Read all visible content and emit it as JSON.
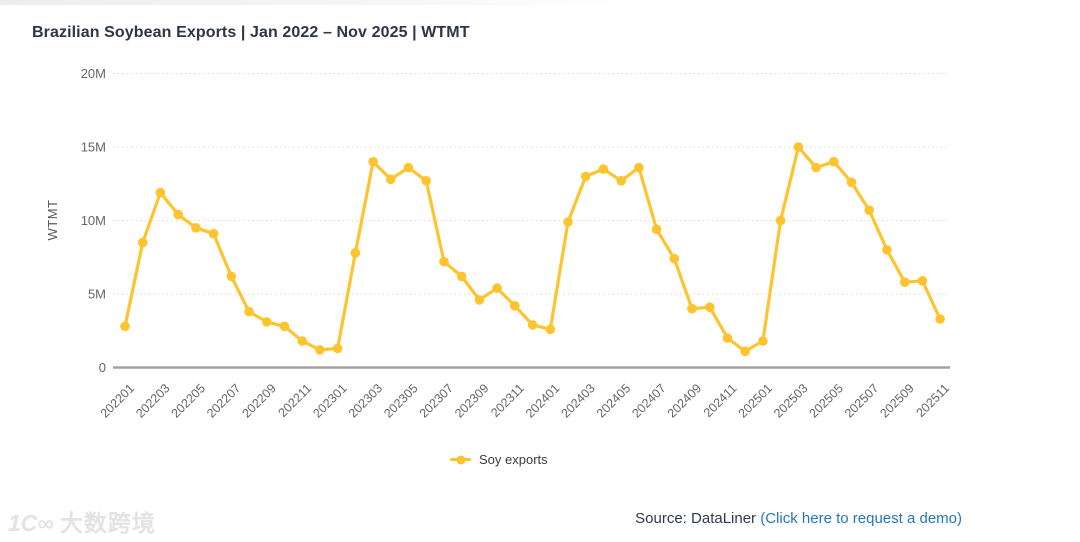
{
  "title": "Brazilian Soybean Exports | Jan 2022 – Nov 2025 | WTMT",
  "chart_data": {
    "type": "line",
    "title": "Brazilian Soybean Exports | Jan 2022 – Nov 2025 | WTMT",
    "xlabel": "",
    "ylabel": "WTMT",
    "unit": "WTMT (millions)",
    "ylim_millions": [
      0,
      20
    ],
    "ytick_values_millions": [
      0,
      5,
      10,
      15,
      20
    ],
    "ytick_labels": [
      "0",
      "5M",
      "10M",
      "15M",
      "20M"
    ],
    "grid": "horizontal dotted gridlines, x-axis solid baseline",
    "legend_position": "bottom-center",
    "x": [
      "202201",
      "202202",
      "202203",
      "202204",
      "202205",
      "202206",
      "202207",
      "202208",
      "202209",
      "202210",
      "202211",
      "202212",
      "202301",
      "202302",
      "202303",
      "202304",
      "202305",
      "202306",
      "202307",
      "202308",
      "202309",
      "202310",
      "202311",
      "202312",
      "202401",
      "202402",
      "202403",
      "202404",
      "202405",
      "202406",
      "202407",
      "202408",
      "202409",
      "202410",
      "202411",
      "202412",
      "202501",
      "202502",
      "202503",
      "202504",
      "202505",
      "202506",
      "202507",
      "202508",
      "202509",
      "202510",
      "202511"
    ],
    "xtick_labels": [
      "202201",
      "202203",
      "202205",
      "202207",
      "202209",
      "202211",
      "202301",
      "202303",
      "202305",
      "202307",
      "202309",
      "202311",
      "202401",
      "202403",
      "202405",
      "202407",
      "202409",
      "202411",
      "202501",
      "202503",
      "202505",
      "202507",
      "202509",
      "202511"
    ],
    "series": [
      {
        "name": "Soy exports",
        "color": "#FDC42F",
        "marker": "filled-circle",
        "values_millions": [
          2.8,
          8.5,
          11.9,
          10.4,
          9.5,
          9.1,
          6.2,
          3.8,
          3.1,
          2.8,
          1.8,
          1.2,
          1.3,
          7.8,
          14.0,
          12.8,
          13.6,
          12.7,
          7.2,
          6.2,
          4.6,
          5.4,
          4.2,
          2.9,
          2.6,
          9.9,
          13.0,
          13.5,
          12.7,
          13.6,
          9.4,
          7.4,
          4.0,
          4.1,
          2.0,
          1.1,
          1.8,
          10.0,
          15.0,
          13.6,
          14.0,
          12.6,
          10.7,
          8.0,
          5.8,
          5.9,
          3.3
        ]
      }
    ]
  },
  "legend": {
    "label": "Soy exports"
  },
  "footer": {
    "source_label": "Source: DataLiner ",
    "link_label": "(Click here to request a demo)"
  },
  "watermark": {
    "logo": "1C∞",
    "text": "大数跨境"
  },
  "colors": {
    "accent_yellow": "#FDC42F",
    "link_blue": "#2477B9",
    "title_text": "#2D3547",
    "axis_text": "#666666",
    "source_text": "#2C3A4E",
    "watermark": "#E3E3E3",
    "grid_line": "#DADADA",
    "axis_line": "#A2A2A2"
  }
}
